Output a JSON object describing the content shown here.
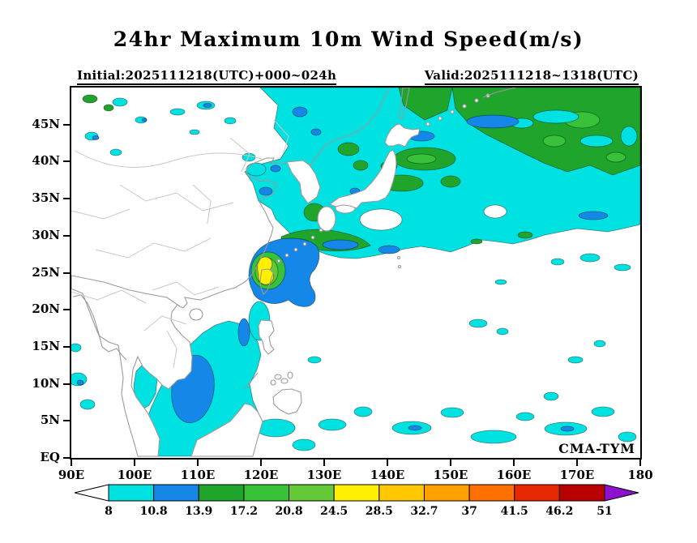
{
  "title": "24hr Maximum 10m Wind Speed(m/s)",
  "subtitle_left": "Initial:2025111218(UTC)+000~024h",
  "subtitle_right": "Valid:2025111218~1318(UTC)",
  "watermark": "CMA-TYM",
  "axes": {
    "lat_ticks": [
      {
        "value": 0,
        "label": "EQ"
      },
      {
        "value": 5,
        "label": "5N"
      },
      {
        "value": 10,
        "label": "10N"
      },
      {
        "value": 15,
        "label": "15N"
      },
      {
        "value": 20,
        "label": "20N"
      },
      {
        "value": 25,
        "label": "25N"
      },
      {
        "value": 30,
        "label": "30N"
      },
      {
        "value": 35,
        "label": "35N"
      },
      {
        "value": 40,
        "label": "40N"
      },
      {
        "value": 45,
        "label": "45N"
      }
    ],
    "lon_ticks": [
      {
        "value": 90,
        "label": "90E"
      },
      {
        "value": 100,
        "label": "100E"
      },
      {
        "value": 110,
        "label": "110E"
      },
      {
        "value": 120,
        "label": "120E"
      },
      {
        "value": 130,
        "label": "130E"
      },
      {
        "value": 140,
        "label": "140E"
      },
      {
        "value": 150,
        "label": "150E"
      },
      {
        "value": 160,
        "label": "160E"
      },
      {
        "value": 170,
        "label": "170E"
      },
      {
        "value": 180,
        "label": "180"
      }
    ]
  },
  "colorbar": {
    "labels": [
      "8",
      "10.8",
      "13.9",
      "17.2",
      "20.8",
      "24.5",
      "28.5",
      "32.7",
      "37",
      "41.5",
      "46.2",
      "51"
    ],
    "segment_colors": [
      "#00E1E1",
      "#1487E8",
      "#1FA42C",
      "#38C23A",
      "#63C939",
      "#FFF000",
      "#FFC800",
      "#FFA000",
      "#FF7000",
      "#E82800",
      "#B80000"
    ],
    "below_arrow_color": "#FFFFFF",
    "above_arrow_color": "#9010D0"
  },
  "chart_data": {
    "type": "heatmap",
    "subtype": "filled-contour-weather-map",
    "title": "24hr Maximum 10m Wind Speed(m/s)",
    "init_label": "Initial:2025111218(UTC)+000~024h",
    "valid_label": "Valid:2025111218~1318(UTC)",
    "model": "CMA-TYM",
    "units": "m/s",
    "x_axis": {
      "label": "longitude",
      "ticks": [
        "90E",
        "100E",
        "110E",
        "120E",
        "130E",
        "140E",
        "150E",
        "160E",
        "170E",
        "180"
      ],
      "range_deg": [
        90,
        180
      ]
    },
    "y_axis": {
      "label": "latitude",
      "ticks": [
        "EQ",
        "5N",
        "10N",
        "15N",
        "20N",
        "25N",
        "30N",
        "35N",
        "40N",
        "45N"
      ],
      "range_deg": [
        0,
        50
      ]
    },
    "contour_levels_mps": [
      8,
      10.8,
      13.9,
      17.2,
      20.8,
      24.5,
      28.5,
      32.7,
      37,
      41.5,
      46.2,
      51
    ],
    "features": [
      {
        "region": "Taiwan Strait / East China Sea typhoon core",
        "lon": [
          118,
          127
        ],
        "lat": [
          21,
          29
        ],
        "max_wind_mps": "24.5-28.5",
        "note": "yellow maximum surrounded by green and blue rings"
      },
      {
        "region": "Western North Pacific storm track",
        "lon": [
          120,
          180
        ],
        "lat": [
          27,
          50
        ],
        "wind_mps": "8-20.8",
        "note": "broad cyan area with green 13.9-20.8 patches and blue streaks"
      },
      {
        "region": "Northeast Pacific corner",
        "lon": [
          148,
          180
        ],
        "lat": [
          35,
          50
        ],
        "wind_mps": "13.9-20.8",
        "note": "large green mass with cyan holes"
      },
      {
        "region": "South China Sea",
        "lon": [
          100,
          121
        ],
        "lat": [
          0,
          16
        ],
        "wind_mps": "8-13.9",
        "note": "cyan with blue core near 106-112E, 5-13N"
      },
      {
        "region": "Tropical western Pacific",
        "lon": [
          125,
          180
        ],
        "lat": [
          0,
          12
        ],
        "wind_mps": "8-13.9",
        "note": "scattered cyan patches"
      },
      {
        "region": "Bay of Bengal edge",
        "lon": [
          90,
          95
        ],
        "lat": [
          4,
          13
        ],
        "wind_mps": "8-10.8"
      },
      {
        "region": "Northeast China / Manchuria",
        "lon": [
          95,
          122
        ],
        "lat": [
          42,
          50
        ],
        "wind_mps": "8-13.9",
        "note": "scattered cyan and blue patches over land"
      }
    ]
  }
}
